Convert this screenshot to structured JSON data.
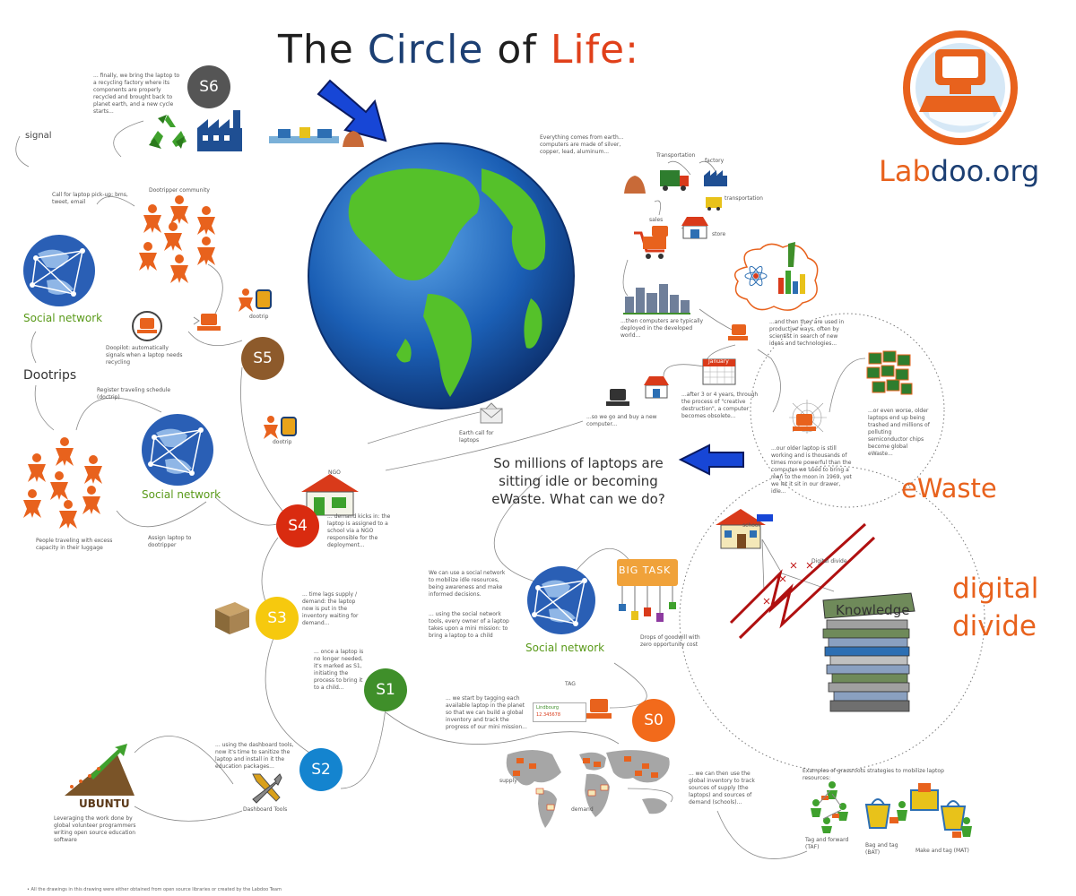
{
  "title": {
    "w1": "The",
    "w2": "Circle",
    "w3": "of",
    "w4": "Life:"
  },
  "brand": {
    "a": "Lab",
    "b": "doo",
    "c": ".org"
  },
  "stages": {
    "s0": "S0",
    "s1": "S1",
    "s2": "S2",
    "s3": "S3",
    "s4": "S4",
    "s5": "S5",
    "s6": "S6"
  },
  "stage_colors": {
    "s0": "#f26a1b",
    "s1": "#3f8f2a",
    "s2": "#1484cf",
    "s3": "#f6c90e",
    "s4": "#d92b10",
    "s5": "#8d5a2b",
    "s6": "#555555"
  },
  "labels": {
    "signal": "signal",
    "dootrips": "Dootrips",
    "social_network": "Social network",
    "ewaste": "eWaste",
    "digital": "digital",
    "divide": "divide",
    "big_task": "BIG TASK",
    "knowledge": "Knowledge",
    "digital_divide_small": "Digital divide",
    "ngo": "NGO",
    "school": "school",
    "ubuntu": "UBUNTU",
    "tag": "TAG",
    "tag_line1": "Lindbourg",
    "tag_line2": "12.345678",
    "supply": "supply",
    "demand": "demand",
    "transportation": "Transportation",
    "transportation2": "transportation",
    "factory": "factory",
    "sales": "sales",
    "store": "store",
    "dashboard_tools": "Dashboard Tools",
    "dootrip": "dootrip",
    "dootrip2": "dootrip",
    "question": "So millions of laptops are sitting idle or becoming eWaste.  What can we do?",
    "dootripper_community": "Dootripper community",
    "january": "January",
    "footnote": "• All the drawings in this drawing were either obtained from open source libraries or created by the Labdoo Team"
  },
  "notes": {
    "s6": "... finally, we bring the laptop to a recycling factory where its components are properly recycled and brought back to planet earth, and a new cycle starts...",
    "callpickup": "Call for laptop pick-up: bms, tweet, email",
    "doopilot": "Doopilot: automatically signals when a laptop needs recycling",
    "register": "Register traveling schedule (doctrip)",
    "travelers": "People traveling with excess capacity in their luggage",
    "assign": "Assign laptop to dootripper",
    "s4": "... demand kicks in: the laptop is assigned to a school via a NGO responsible for the deployment...",
    "s3": "... time lags supply / demand: the laptop now is put in the inventory waiting for demand...",
    "s1": "... once a laptop is no longer needed, it's marked as S1, initiating the process to bring it to a child...",
    "s2": "... using the dashboard tools, now it's time to sanitize the laptop and install in it the education packages...",
    "ubuntu": "Leveraging the work done by global volunteer programmers writing open source education software",
    "earth": "Everything comes from earth... computers are made of silver, copper, lead, aluminum...",
    "deployed": "...then computers are typically deployed in the developed world...",
    "used": "...and then they are used in productive ways, often by scientist in search of new ideas and technologies...",
    "buy": "...so we go and buy a new computer...",
    "obsolete": "...after 3 or 4 years, through the process of \"creative destruction\", a computer becomes obsolete...",
    "older": "...our older laptop is still working and is thousands of times more powerful than the computer we used to bring a man to the moon in 1969, yet we let it sit in our drawer, idle...",
    "worse": "...or even worse, older laptops end up being trashed and millions of polluting semiconductor chips become global eWaste...",
    "earthcall": "Earth call for laptops",
    "social": "We can use a social network to mobilize idle resources, being awareness and make informed decisions.",
    "social2": "... using the social network tools, every owner of a laptop takes upon a mini mission: to bring a laptop to a child",
    "drops": "Drops of goodwill with zero opportunity cost",
    "s0": "... we start by tagging each available laptop in the planet so that we can build a global inventory and track the progress of our mini mission...",
    "global": "... we can then use the global inventory to track sources of supply (the laptops) and sources of demand (schools)...",
    "examples": "Examples of grassroots strategies to mobilize laptop resources:",
    "taf": "Tag and forward (TAF)",
    "bat": "Bag and tag (BAT)",
    "mat": "Make and tag (MAT)"
  },
  "colors": {
    "orange": "#e8621d",
    "navy": "#1c3f73",
    "green": "#5a9a1a",
    "arrow": "#1746d6"
  }
}
